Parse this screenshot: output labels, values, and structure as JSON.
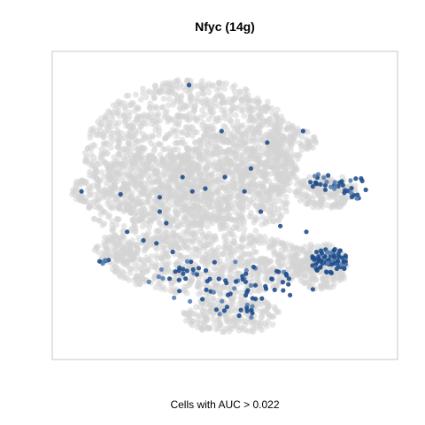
{
  "chart_data": {
    "type": "scatter",
    "title": "Nfyc (14g)",
    "caption": "Cells with AUC > 0.022",
    "xlabel": "",
    "ylabel": "",
    "axes_visible": false,
    "grid": false,
    "legend": "none",
    "colors": {
      "background_cells": "#d3d3d3",
      "high_auc_cells": "#1f4e8c",
      "mid_auc_cells": "#5b7fb0",
      "frame": "#c8c8c8"
    },
    "xlim": [
      0,
      100
    ],
    "ylim": [
      0,
      100
    ],
    "background_regions": [
      {
        "cx": 40,
        "cy": 68,
        "rx": 33,
        "ry": 26,
        "n": 1500
      },
      {
        "cx": 27,
        "cy": 52,
        "rx": 19,
        "ry": 16,
        "n": 420
      },
      {
        "cx": 54,
        "cy": 59,
        "rx": 19,
        "ry": 19,
        "n": 450
      },
      {
        "cx": 46,
        "cy": 30,
        "rx": 31,
        "ry": 11,
        "n": 700
      },
      {
        "cx": 52,
        "cy": 12,
        "rx": 15,
        "ry": 6.5,
        "n": 230
      },
      {
        "cx": 81,
        "cy": 55,
        "rx": 10,
        "ry": 6,
        "n": 170
      },
      {
        "cx": 79,
        "cy": 29,
        "rx": 9,
        "ry": 8,
        "n": 210
      },
      {
        "cx": 70,
        "cy": 72,
        "rx": 8,
        "ry": 6,
        "n": 90
      },
      {
        "cx": 6,
        "cy": 55,
        "rx": 3,
        "ry": 4,
        "n": 40
      },
      {
        "cx": 17,
        "cy": 35,
        "rx": 7,
        "ry": 5,
        "n": 90
      }
    ],
    "highlight_clusters": [
      {
        "cx": 82,
        "cy": 31,
        "rx": 6,
        "ry": 4.5,
        "n": 80
      },
      {
        "cx": 81,
        "cy": 58,
        "rx": 5,
        "ry": 3.5,
        "n": 22
      },
      {
        "cx": 90,
        "cy": 56,
        "rx": 4,
        "ry": 4,
        "n": 16
      },
      {
        "cx": 54,
        "cy": 13,
        "rx": 7,
        "ry": 3,
        "n": 14
      },
      {
        "cx": 13,
        "cy": 31,
        "rx": 2,
        "ry": 1.2,
        "n": 7
      },
      {
        "cx": 48,
        "cy": 24,
        "rx": 22,
        "ry": 8,
        "n": 70
      }
    ],
    "highlight_points": [
      {
        "x": 39,
        "y": 92
      },
      {
        "x": 74,
        "y": 76
      },
      {
        "x": 63,
        "y": 72
      },
      {
        "x": 49,
        "y": 76
      },
      {
        "x": 37,
        "y": 60
      },
      {
        "x": 50,
        "y": 60
      },
      {
        "x": 56,
        "y": 55
      },
      {
        "x": 40,
        "y": 55
      },
      {
        "x": 30,
        "y": 53
      },
      {
        "x": 18,
        "y": 54
      },
      {
        "x": 30,
        "y": 48
      },
      {
        "x": 6,
        "y": 55
      },
      {
        "x": 61,
        "y": 48
      },
      {
        "x": 67,
        "y": 43
      },
      {
        "x": 75,
        "y": 41
      },
      {
        "x": 25,
        "y": 38
      },
      {
        "x": 29,
        "y": 37
      },
      {
        "x": 34,
        "y": 34
      },
      {
        "x": 20,
        "y": 41
      },
      {
        "x": 70,
        "y": 19
      },
      {
        "x": 77,
        "y": 21
      },
      {
        "x": 44,
        "y": 56
      },
      {
        "x": 58,
        "y": 63
      },
      {
        "x": 32,
        "y": 44
      }
    ]
  }
}
